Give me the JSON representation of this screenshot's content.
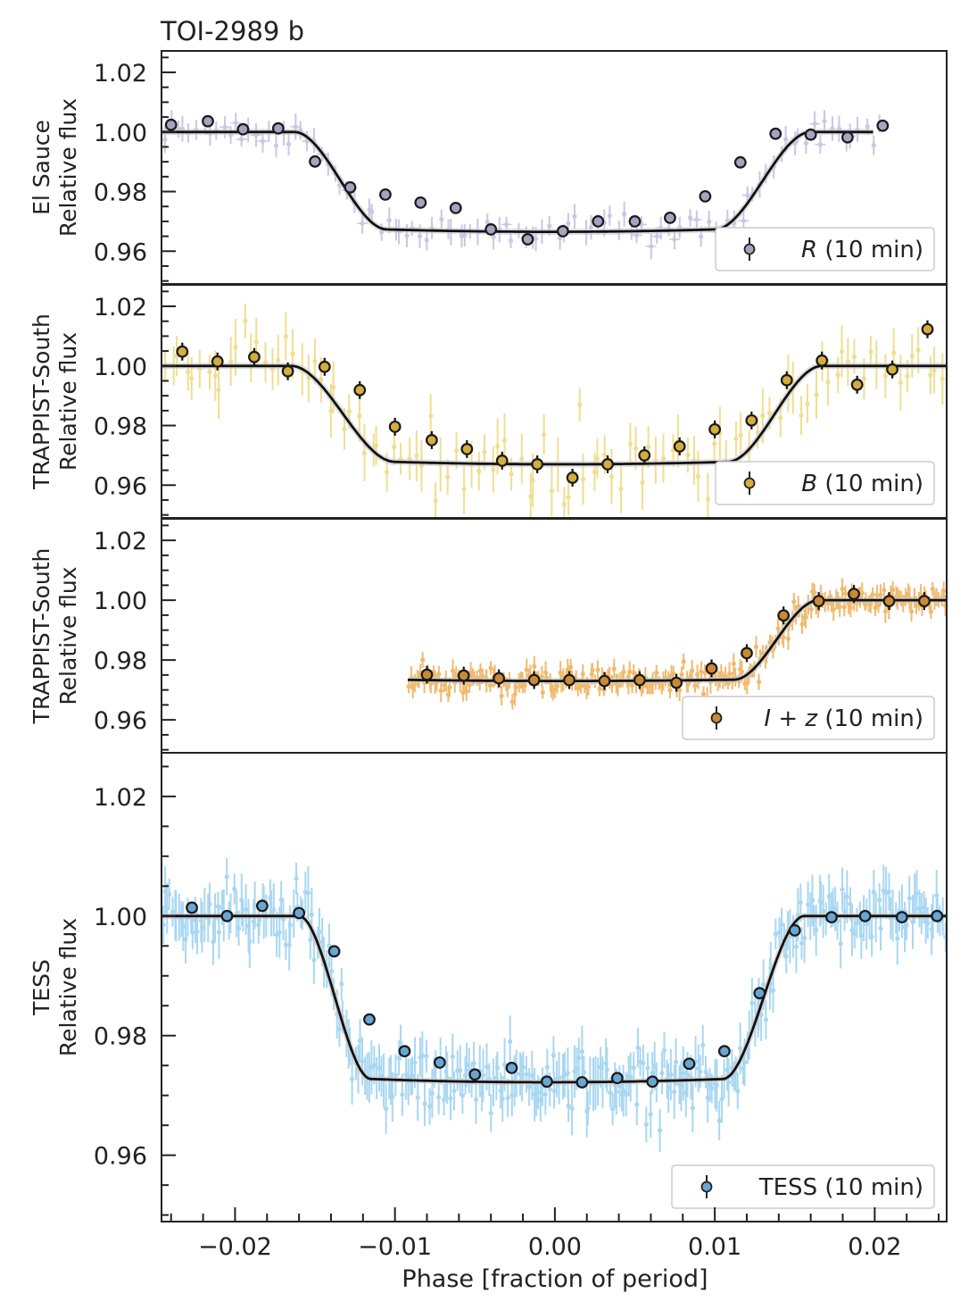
{
  "chart_data": {
    "type": "scatter",
    "title": "TOI-2989 b",
    "xlabel": "Phase [fraction of period]",
    "xlim": [
      -0.0246,
      0.0245
    ],
    "x_ticks": [
      -0.02,
      -0.01,
      0.0,
      0.01,
      0.02
    ],
    "x_tick_labels": [
      "−0.02",
      "−0.01",
      "0.00",
      "0.01",
      "0.02"
    ],
    "panels": [
      {
        "id": "el-sauce",
        "ylabel_line1": "El Sauce",
        "ylabel_line2": "Relative flux",
        "ylim": [
          0.949,
          1.0272
        ],
        "y_ticks": [
          0.96,
          0.98,
          1.0,
          1.02
        ],
        "y_tick_labels": [
          "0.96",
          "0.98",
          "1.00",
          "1.02"
        ],
        "legend": "R (10 min)",
        "legend_italic": "R",
        "legend_rest": " (10 min)",
        "color": "#a9a7c9",
        "marker_color": "#a6a3c2",
        "raw_color": "#b7b5dc",
        "raw_range": [
          -0.0246,
          0.0205
        ],
        "raw_scatter": 0.0035,
        "model": {
          "t1": -0.0163,
          "t2": -0.0105,
          "t3": 0.01,
          "t4": 0.016,
          "depth": 0.0335,
          "curv": 0.5,
          "xmax": 0.0199
        },
        "binned": {
          "x": [
            -0.024,
            -0.0217,
            -0.0195,
            -0.0173,
            -0.015,
            -0.0128,
            -0.0106,
            -0.0084,
            -0.0062,
            -0.004,
            -0.0017,
            0.0005,
            0.0027,
            0.005,
            0.0072,
            0.0094,
            0.0116,
            0.0138,
            0.016,
            0.0183,
            0.0205
          ],
          "y": [
            1.0024,
            1.0036,
            1.0009,
            1.0012,
            0.9901,
            0.9814,
            0.979,
            0.9763,
            0.9745,
            0.9673,
            0.964,
            0.9667,
            0.97,
            0.97,
            0.9712,
            0.9784,
            0.9898,
            0.9994,
            0.9991,
            0.9982,
            1.0021
          ]
        }
      },
      {
        "id": "trappist-b",
        "ylabel_line1": "TRAPPIST-South",
        "ylabel_line2": "Relative flux",
        "ylim": [
          0.949,
          1.0272
        ],
        "y_ticks": [
          0.96,
          0.98,
          1.0,
          1.02
        ],
        "y_tick_labels": [
          "0.96",
          "0.98",
          "1.00",
          "1.02"
        ],
        "legend": "B (10 min)",
        "legend_italic": "B",
        "legend_rest": " (10 min)",
        "color": "#d4ad3c",
        "marker_color": "#d4ad3c",
        "raw_color": "#ecd36a",
        "raw_range": [
          -0.0246,
          0.0245
        ],
        "raw_scatter": 0.0075,
        "model": {
          "t1": -0.0165,
          "t2": -0.01,
          "t3": 0.0108,
          "t4": 0.0167,
          "depth": 0.033,
          "curv": 0.5,
          "xmax": 0.0245
        },
        "binned": {
          "x": [
            -0.0233,
            -0.0211,
            -0.0188,
            -0.0167,
            -0.0144,
            -0.0122,
            -0.01,
            -0.0077,
            -0.0055,
            -0.0033,
            -0.0011,
            0.0011,
            0.0033,
            0.0056,
            0.0078,
            0.01,
            0.0123,
            0.0145,
            0.0167,
            0.0189,
            0.0211,
            0.0233
          ],
          "y": [
            1.0048,
            1.0015,
            1.003,
            0.9982,
            0.9997,
            0.9919,
            0.9796,
            0.9751,
            0.9721,
            0.9682,
            0.967,
            0.9625,
            0.967,
            0.97,
            0.973,
            0.9787,
            0.9817,
            0.9952,
            1.0018,
            0.9937,
            0.9988,
            1.0123
          ]
        }
      },
      {
        "id": "trappist-iz",
        "ylabel_line1": "TRAPPIST-South",
        "ylabel_line2": "Relative flux",
        "ylim": [
          0.949,
          1.0272
        ],
        "y_ticks": [
          0.96,
          0.98,
          1.0,
          1.02
        ],
        "y_tick_labels": [
          "0.96",
          "0.98",
          "1.00",
          "1.02"
        ],
        "legend": "I + z (10 min)",
        "legend_italic": "I + z",
        "legend_rest": " (10 min)",
        "color": "#c98a35",
        "marker_color": "#c98a35",
        "raw_color": "#eba440",
        "raw_range": [
          -0.0092,
          0.0245
        ],
        "raw_scatter": 0.003,
        "model": {
          "t1": -0.0165,
          "t2": -0.01,
          "t3": 0.0112,
          "t4": 0.0165,
          "depth": 0.027,
          "curv": 0.3,
          "xmin": -0.0092,
          "xmax": 0.0245
        },
        "binned": {
          "x": [
            -0.008,
            -0.0057,
            -0.0035,
            -0.0013,
            0.0009,
            0.0031,
            0.0053,
            0.0076,
            0.0098,
            0.012,
            0.0143,
            0.0165,
            0.0187,
            0.0209,
            0.0231
          ],
          "y": [
            0.9751,
            0.9748,
            0.9739,
            0.9733,
            0.9733,
            0.973,
            0.9733,
            0.9724,
            0.9772,
            0.9823,
            0.9949,
            0.9997,
            1.0021,
            0.9997,
            0.9997
          ]
        }
      },
      {
        "id": "tess",
        "ylabel_line1": "TESS",
        "ylabel_line2": "Relative flux",
        "ylim": [
          0.9489,
          1.0273
        ],
        "y_ticks": [
          0.96,
          0.98,
          1.0,
          1.02
        ],
        "y_tick_labels": [
          "0.96",
          "0.98",
          "1.00",
          "1.02"
        ],
        "legend": "TESS (10 min)",
        "legend_italic": "",
        "legend_rest": "TESS (10 min)",
        "color": "#5d9fcf",
        "marker_color": "#6aa6d4",
        "raw_color": "#8ccaee",
        "raw_range": [
          -0.0246,
          0.0245
        ],
        "raw_scatter": 0.0035,
        "model": {
          "t1": -0.016,
          "t2": -0.0115,
          "t3": 0.0105,
          "t4": 0.0156,
          "depth": 0.0278,
          "curv": 0.35,
          "xmax": 0.0245
        },
        "binned": {
          "x": [
            -0.0227,
            -0.0205,
            -0.0183,
            -0.016,
            -0.0138,
            -0.0116,
            -0.0094,
            -0.0072,
            -0.005,
            -0.0027,
            -0.0005,
            0.0017,
            0.0039,
            0.0061,
            0.0084,
            0.0106,
            0.0128,
            0.015,
            0.0173,
            0.0194,
            0.0217,
            0.0239
          ],
          "y": [
            1.0014,
            1.0,
            1.0017,
            1.0005,
            0.9941,
            0.9827,
            0.9774,
            0.9755,
            0.9735,
            0.9746,
            0.9723,
            0.9722,
            0.9729,
            0.9723,
            0.9753,
            0.9774,
            0.9871,
            0.9976,
            0.9998,
            1.0,
            0.9998,
            1.0
          ]
        }
      }
    ]
  }
}
